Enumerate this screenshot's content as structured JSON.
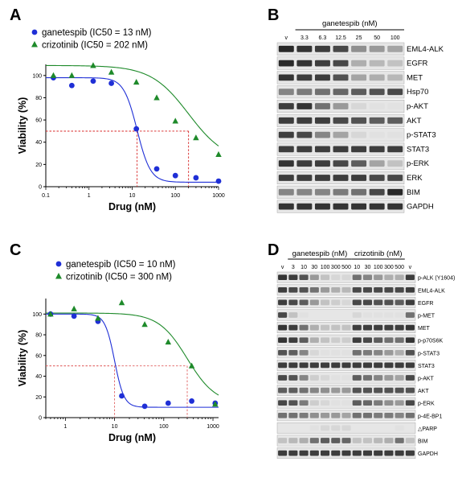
{
  "panels": {
    "A": {
      "letter": "A",
      "legend": [
        {
          "series": "ganetespib",
          "text": "ganetespib (IC50 = 13 nM)",
          "marker": "circle",
          "color": "#1f2fd6"
        },
        {
          "series": "crizotinib",
          "text": "crizotinib (IC50 = 202 nM)",
          "marker": "triangle",
          "color": "#1e8a2a"
        }
      ],
      "xlabel": "Drug (nM)",
      "ylabel": "Viability (%)",
      "xticks": [
        "0.1",
        "1",
        "10",
        "100",
        "1000"
      ],
      "yticks": [
        "0",
        "20",
        "40",
        "60",
        "80",
        "100"
      ]
    },
    "B": {
      "letter": "B",
      "drug": "ganetespib (nM)",
      "lanes": [
        "v",
        "3.3",
        "6.3",
        "12.5",
        "25",
        "50",
        "100"
      ],
      "proteins": [
        "EML4-ALK",
        "EGFR",
        "MET",
        "Hsp70",
        "p-AKT",
        "AKT",
        "p-STAT3",
        "STAT3",
        "p-ERK",
        "ERK",
        "BIM",
        "GAPDH"
      ]
    },
    "C": {
      "letter": "C",
      "legend": [
        {
          "series": "ganetespib",
          "text": "ganetespib (IC50 = 10 nM)",
          "marker": "circle",
          "color": "#1f2fd6"
        },
        {
          "series": "crizotinib",
          "text": "crizotinib (IC50 = 300 nM)",
          "marker": "triangle",
          "color": "#1e8a2a"
        }
      ],
      "xlabel": "Drug (nM)",
      "ylabel": "Viability (%)",
      "xticks": [
        "1",
        "10",
        "100",
        "1000"
      ],
      "yticks": [
        "0",
        "20",
        "40",
        "60",
        "80",
        "100"
      ]
    },
    "D": {
      "letter": "D",
      "drug1": "ganetespib (nM)",
      "drug2": "crizotinib (nM)",
      "lanes": [
        "v",
        "3",
        "10",
        "30",
        "100",
        "300",
        "500",
        "10",
        "30",
        "100",
        "300",
        "500",
        "v"
      ],
      "proteins": [
        "p-ALK (Y1604)",
        "EML4-ALK",
        "EGFR",
        "p-MET",
        "MET",
        "p-p70S6K",
        "p-STAT3",
        "STAT3",
        "p-AKT",
        "AKT",
        "p-ERK",
        "p-4E-BP1",
        "△PARP",
        "BIM",
        "GAPDH"
      ]
    }
  },
  "chart_data": [
    {
      "type": "scatter",
      "panel": "A",
      "title": "",
      "xlabel": "Drug (nM)",
      "ylabel": "Viability (%)",
      "xscale": "log",
      "xlim": [
        0.1,
        1000
      ],
      "ylim": [
        0,
        110
      ],
      "series": [
        {
          "name": "ganetespib (IC50 = 13 nM)",
          "color": "#1f2fd6",
          "marker": "circle",
          "x": [
            0.15,
            0.4,
            1.25,
            3.3,
            12.5,
            37,
            100,
            300,
            1000
          ],
          "y": [
            98,
            91,
            95,
            93,
            52,
            16,
            10,
            8,
            5
          ],
          "ic50": 13
        },
        {
          "name": "crizotinib (IC50 = 202 nM)",
          "color": "#1e8a2a",
          "marker": "triangle",
          "x": [
            0.15,
            0.4,
            1.25,
            3.3,
            12.5,
            37,
            100,
            300,
            1000
          ],
          "y": [
            100,
            100,
            109,
            103,
            94,
            80,
            59,
            44,
            29
          ],
          "ic50": 202
        }
      ]
    },
    {
      "type": "scatter",
      "panel": "C",
      "title": "",
      "xlabel": "Drug (nM)",
      "ylabel": "Viability (%)",
      "xscale": "log",
      "xlim": [
        0.4,
        1300
      ],
      "ylim": [
        0,
        115
      ],
      "series": [
        {
          "name": "ganetespib (IC50 = 10 nM)",
          "color": "#1f2fd6",
          "marker": "circle",
          "x": [
            0.5,
            1.5,
            4.6,
            14,
            41,
            123,
            370,
            1111
          ],
          "y": [
            100,
            98,
            93,
            21,
            11,
            14,
            16,
            14
          ],
          "ic50": 10
        },
        {
          "name": "crizotinib (IC50 = 300 nM)",
          "color": "#1e8a2a",
          "marker": "triangle",
          "x": [
            0.5,
            1.5,
            4.6,
            14,
            41,
            123,
            370,
            1111
          ],
          "y": [
            100,
            105,
            96,
            111,
            90,
            73,
            50,
            13
          ],
          "ic50": 300
        }
      ]
    }
  ]
}
